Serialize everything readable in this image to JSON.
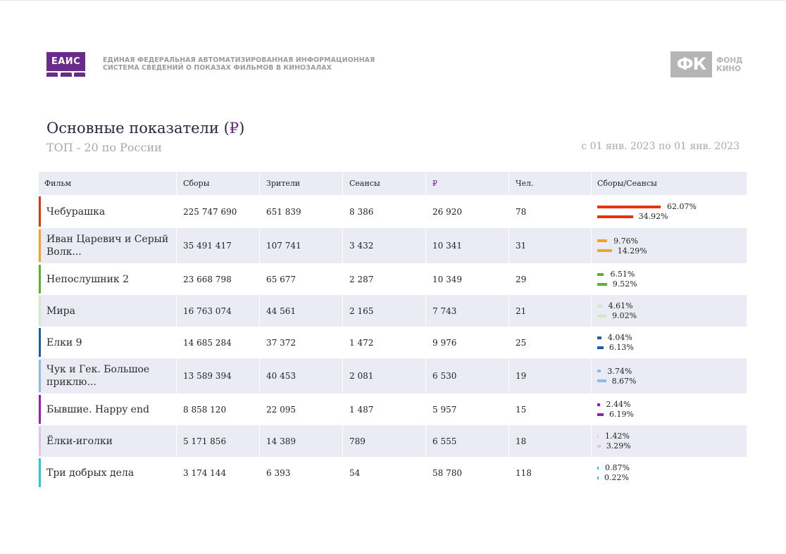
{
  "header": {
    "eais_logo_text": "ЕАИС",
    "eais_line1": "ЕДИНАЯ ФЕДЕРАЛЬНАЯ АВТОМАТИЗИРОВАННАЯ ИНФОРМАЦИОННАЯ",
    "eais_line2": "СИСТЕМА СВЕДЕНИЙ О ПОКАЗАХ ФИЛЬМОВ В КИНОЗАЛАХ",
    "fk_mark": "ФК",
    "fk_line1": "ФОНД",
    "fk_line2": "КИНО"
  },
  "report": {
    "title": "Основные показатели (",
    "title_rub": "₽",
    "title_end": ")",
    "subtitle": "ТОП - 20 по России",
    "period": "с 01 янв. 2023 по 01 янв. 2023"
  },
  "table": {
    "columns": [
      "Фильм",
      "Сборы",
      "Зрители",
      "Сеансы",
      "₽",
      "Чел.",
      "Сборы/Сеансы"
    ],
    "rows": [
      {
        "film": "Чебурашка",
        "gross": "225 747 690",
        "viewers": "651 839",
        "sessions": "8 386",
        "rub": "26 920",
        "people": "78",
        "gross_pct": "62.07%",
        "sessions_pct": "34.92%",
        "gross_share": 62.07,
        "sessions_share": 34.92,
        "color": "#e8340a"
      },
      {
        "film": "Иван Царевич и Серый Волк...",
        "gross": "35 491 417",
        "viewers": "107 741",
        "sessions": "3 432",
        "rub": "10 341",
        "people": "31",
        "gross_pct": "9.76%",
        "sessions_pct": "14.29%",
        "gross_share": 9.76,
        "sessions_share": 14.29,
        "color": "#f5a22a"
      },
      {
        "film": "Непослушник 2",
        "gross": "23 668 798",
        "viewers": "65 677",
        "sessions": "2 287",
        "rub": "10 349",
        "people": "29",
        "gross_pct": "6.51%",
        "sessions_pct": "9.52%",
        "gross_share": 6.51,
        "sessions_share": 9.52,
        "color": "#5ab52a"
      },
      {
        "film": "Мира",
        "gross": "16 763 074",
        "viewers": "44 561",
        "sessions": "2 165",
        "rub": "7 743",
        "people": "21",
        "gross_pct": "4.61%",
        "sessions_pct": "9.02%",
        "gross_share": 4.61,
        "sessions_share": 9.02,
        "color": "#cdebc4"
      },
      {
        "film": "Елки 9",
        "gross": "14 685 284",
        "viewers": "37 372",
        "sessions": "1 472",
        "rub": "9 976",
        "people": "25",
        "gross_pct": "4.04%",
        "sessions_pct": "6.13%",
        "gross_share": 4.04,
        "sessions_share": 6.13,
        "color": "#1a5fa8"
      },
      {
        "film": "Чук и Гек. Большое приклю...",
        "gross": "13 589 394",
        "viewers": "40 453",
        "sessions": "2 081",
        "rub": "6 530",
        "people": "19",
        "gross_pct": "3.74%",
        "sessions_pct": "8.67%",
        "gross_share": 3.74,
        "sessions_share": 8.67,
        "color": "#8fb8e3"
      },
      {
        "film": "Бывшие. Happy end",
        "gross": "8 858 120",
        "viewers": "22 095",
        "sessions": "1 487",
        "rub": "5 957",
        "people": "15",
        "gross_pct": "2.44%",
        "sessions_pct": "6.19%",
        "gross_share": 2.44,
        "sessions_share": 6.19,
        "color": "#9b1db8"
      },
      {
        "film": "Ёлки-иголки",
        "gross": "5 171 856",
        "viewers": "14 389",
        "sessions": "789",
        "rub": "6 555",
        "people": "18",
        "gross_pct": "1.42%",
        "sessions_pct": "3.29%",
        "gross_share": 1.42,
        "sessions_share": 3.29,
        "color": "#e3c2ec"
      },
      {
        "film": "Три добрых дела",
        "gross": "3 174 144",
        "viewers": "6 393",
        "sessions": "54",
        "rub": "58 780",
        "people": "118",
        "gross_pct": "0.87%",
        "sessions_pct": "0.22%",
        "gross_share": 0.87,
        "sessions_share": 0.22,
        "color": "#2cc6d6"
      }
    ]
  }
}
